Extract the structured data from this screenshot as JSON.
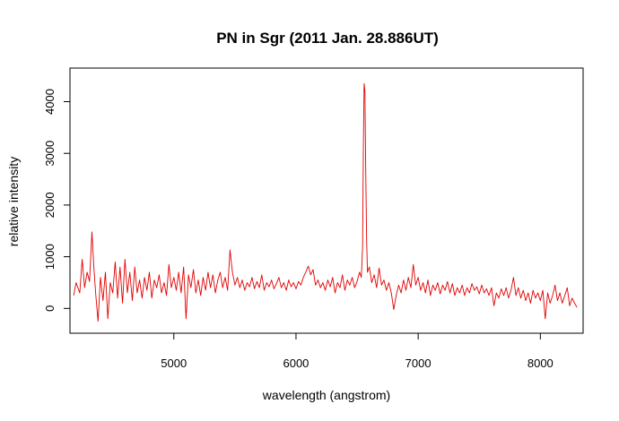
{
  "chart_data": {
    "type": "line",
    "title": "PN in Sgr (2011 Jan. 28.886UT)",
    "xlabel": "wavelength (angstrom)",
    "ylabel": "relative intensity",
    "xlim": [
      4150,
      8350
    ],
    "ylim": [
      -480,
      4650
    ],
    "xticks": [
      5000,
      6000,
      7000,
      8000
    ],
    "yticks": [
      0,
      1000,
      2000,
      3000,
      4000
    ],
    "xtick_labels": [
      "5000",
      "6000",
      "7000",
      "8000"
    ],
    "ytick_labels": [
      "0",
      "1000",
      "2000",
      "3000",
      "4000"
    ],
    "grid": false,
    "legend": "none",
    "series": [
      {
        "color": "#e00000",
        "x_range": [
          4180,
          8300
        ],
        "points": [
          [
            4180,
            250
          ],
          [
            4200,
            500
          ],
          [
            4230,
            300
          ],
          [
            4250,
            950
          ],
          [
            4270,
            400
          ],
          [
            4290,
            700
          ],
          [
            4310,
            520
          ],
          [
            4330,
            1480
          ],
          [
            4345,
            800
          ],
          [
            4360,
            300
          ],
          [
            4380,
            -250
          ],
          [
            4400,
            600
          ],
          [
            4420,
            150
          ],
          [
            4440,
            700
          ],
          [
            4460,
            -200
          ],
          [
            4480,
            500
          ],
          [
            4500,
            300
          ],
          [
            4520,
            900
          ],
          [
            4540,
            200
          ],
          [
            4560,
            800
          ],
          [
            4580,
            100
          ],
          [
            4600,
            950
          ],
          [
            4620,
            300
          ],
          [
            4640,
            700
          ],
          [
            4660,
            150
          ],
          [
            4680,
            800
          ],
          [
            4700,
            300
          ],
          [
            4720,
            550
          ],
          [
            4740,
            200
          ],
          [
            4760,
            600
          ],
          [
            4780,
            350
          ],
          [
            4800,
            700
          ],
          [
            4820,
            200
          ],
          [
            4840,
            550
          ],
          [
            4860,
            400
          ],
          [
            4880,
            650
          ],
          [
            4900,
            300
          ],
          [
            4920,
            500
          ],
          [
            4940,
            250
          ],
          [
            4960,
            850
          ],
          [
            4980,
            400
          ],
          [
            5000,
            600
          ],
          [
            5020,
            350
          ],
          [
            5040,
            700
          ],
          [
            5060,
            300
          ],
          [
            5080,
            800
          ],
          [
            5100,
            -200
          ],
          [
            5120,
            650
          ],
          [
            5140,
            400
          ],
          [
            5160,
            750
          ],
          [
            5180,
            300
          ],
          [
            5200,
            550
          ],
          [
            5220,
            250
          ],
          [
            5240,
            600
          ],
          [
            5260,
            350
          ],
          [
            5280,
            700
          ],
          [
            5300,
            400
          ],
          [
            5320,
            650
          ],
          [
            5340,
            300
          ],
          [
            5360,
            550
          ],
          [
            5380,
            700
          ],
          [
            5400,
            400
          ],
          [
            5420,
            600
          ],
          [
            5440,
            350
          ],
          [
            5460,
            1130
          ],
          [
            5480,
            700
          ],
          [
            5500,
            450
          ],
          [
            5520,
            600
          ],
          [
            5540,
            400
          ],
          [
            5560,
            550
          ],
          [
            5580,
            350
          ],
          [
            5600,
            500
          ],
          [
            5620,
            420
          ],
          [
            5640,
            600
          ],
          [
            5660,
            380
          ],
          [
            5680,
            520
          ],
          [
            5700,
            400
          ],
          [
            5720,
            650
          ],
          [
            5740,
            350
          ],
          [
            5760,
            500
          ],
          [
            5780,
            420
          ],
          [
            5800,
            550
          ],
          [
            5820,
            380
          ],
          [
            5840,
            480
          ],
          [
            5860,
            600
          ],
          [
            5880,
            400
          ],
          [
            5900,
            500
          ],
          [
            5920,
            350
          ],
          [
            5940,
            550
          ],
          [
            5960,
            420
          ],
          [
            5980,
            500
          ],
          [
            6000,
            380
          ],
          [
            6020,
            520
          ],
          [
            6040,
            450
          ],
          [
            6060,
            600
          ],
          [
            6080,
            700
          ],
          [
            6100,
            820
          ],
          [
            6120,
            650
          ],
          [
            6140,
            750
          ],
          [
            6160,
            450
          ],
          [
            6180,
            550
          ],
          [
            6200,
            400
          ],
          [
            6220,
            500
          ],
          [
            6240,
            350
          ],
          [
            6260,
            550
          ],
          [
            6280,
            420
          ],
          [
            6300,
            600
          ],
          [
            6320,
            300
          ],
          [
            6340,
            500
          ],
          [
            6360,
            400
          ],
          [
            6380,
            650
          ],
          [
            6400,
            350
          ],
          [
            6420,
            550
          ],
          [
            6440,
            450
          ],
          [
            6460,
            600
          ],
          [
            6480,
            400
          ],
          [
            6500,
            520
          ],
          [
            6520,
            700
          ],
          [
            6535,
            600
          ],
          [
            6545,
            1200
          ],
          [
            6552,
            3200
          ],
          [
            6558,
            4350
          ],
          [
            6564,
            4200
          ],
          [
            6570,
            2800
          ],
          [
            6578,
            1300
          ],
          [
            6585,
            700
          ],
          [
            6600,
            800
          ],
          [
            6620,
            500
          ],
          [
            6640,
            650
          ],
          [
            6660,
            400
          ],
          [
            6680,
            780
          ],
          [
            6700,
            450
          ],
          [
            6720,
            550
          ],
          [
            6740,
            350
          ],
          [
            6760,
            500
          ],
          [
            6780,
            300
          ],
          [
            6800,
            -20
          ],
          [
            6820,
            250
          ],
          [
            6840,
            450
          ],
          [
            6860,
            300
          ],
          [
            6880,
            550
          ],
          [
            6900,
            350
          ],
          [
            6920,
            600
          ],
          [
            6940,
            400
          ],
          [
            6960,
            850
          ],
          [
            6980,
            450
          ],
          [
            7000,
            600
          ],
          [
            7020,
            350
          ],
          [
            7040,
            500
          ],
          [
            7060,
            300
          ],
          [
            7080,
            550
          ],
          [
            7100,
            250
          ],
          [
            7120,
            450
          ],
          [
            7140,
            350
          ],
          [
            7160,
            500
          ],
          [
            7180,
            280
          ],
          [
            7200,
            450
          ],
          [
            7220,
            350
          ],
          [
            7240,
            520
          ],
          [
            7260,
            300
          ],
          [
            7280,
            480
          ],
          [
            7300,
            250
          ],
          [
            7320,
            400
          ],
          [
            7340,
            300
          ],
          [
            7360,
            450
          ],
          [
            7380,
            250
          ],
          [
            7400,
            400
          ],
          [
            7420,
            300
          ],
          [
            7440,
            480
          ],
          [
            7460,
            350
          ],
          [
            7480,
            420
          ],
          [
            7500,
            280
          ],
          [
            7520,
            450
          ],
          [
            7540,
            300
          ],
          [
            7560,
            380
          ],
          [
            7580,
            250
          ],
          [
            7600,
            400
          ],
          [
            7620,
            50
          ],
          [
            7640,
            300
          ],
          [
            7660,
            200
          ],
          [
            7680,
            380
          ],
          [
            7700,
            250
          ],
          [
            7720,
            400
          ],
          [
            7740,
            200
          ],
          [
            7760,
            350
          ],
          [
            7780,
            600
          ],
          [
            7800,
            250
          ],
          [
            7820,
            400
          ],
          [
            7840,
            200
          ],
          [
            7860,
            350
          ],
          [
            7880,
            150
          ],
          [
            7900,
            300
          ],
          [
            7920,
            100
          ],
          [
            7940,
            350
          ],
          [
            7960,
            200
          ],
          [
            7980,
            300
          ],
          [
            8000,
            150
          ],
          [
            8020,
            350
          ],
          [
            8040,
            -200
          ],
          [
            8060,
            300
          ],
          [
            8080,
            100
          ],
          [
            8100,
            250
          ],
          [
            8120,
            450
          ],
          [
            8140,
            150
          ],
          [
            8160,
            300
          ],
          [
            8180,
            100
          ],
          [
            8200,
            250
          ],
          [
            8220,
            400
          ],
          [
            8240,
            50
          ],
          [
            8260,
            200
          ],
          [
            8280,
            100
          ],
          [
            8300,
            20
          ]
        ]
      }
    ]
  }
}
